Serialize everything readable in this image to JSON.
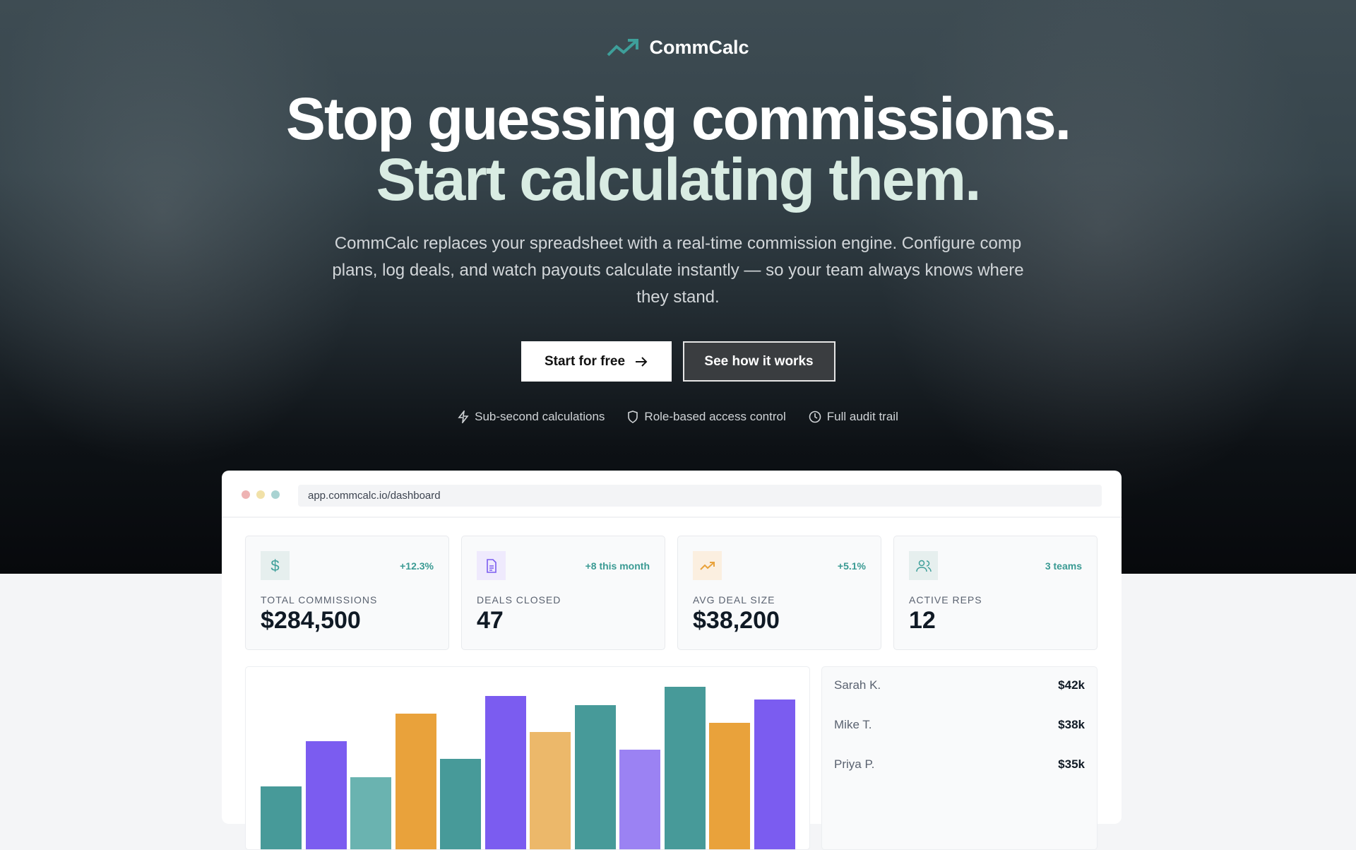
{
  "brand": {
    "name": "CommCalc",
    "accent": "#3e9f9a"
  },
  "hero": {
    "headline_1": "Stop guessing commissions.",
    "headline_2": "Start calculating them.",
    "subtitle": "CommCalc replaces your spreadsheet with a real-time commission engine. Configure comp plans, log deals, and watch payouts calculate instantly — so your team always knows where they stand.",
    "primary_button": "Start for free",
    "secondary_button": "See how it works",
    "features": [
      {
        "icon": "lightning-icon",
        "label": "Sub-second calculations"
      },
      {
        "icon": "shield-icon",
        "label": "Role-based access control"
      },
      {
        "icon": "clock-icon",
        "label": "Full audit trail"
      }
    ]
  },
  "dashboard": {
    "url": "app.commcalc.io/dashboard",
    "stats": [
      {
        "icon": "dollar-icon",
        "badge": "+12.3%",
        "label": "TOTAL COMMISSIONS",
        "value": "$284,500"
      },
      {
        "icon": "document-icon",
        "badge": "+8 this month",
        "label": "DEALS CLOSED",
        "value": "47"
      },
      {
        "icon": "trending-up-icon",
        "badge": "+5.1%",
        "label": "AVG DEAL SIZE",
        "value": "$38,200"
      },
      {
        "icon": "users-icon",
        "badge": "3 teams",
        "label": "ACTIVE REPS",
        "value": "12"
      }
    ],
    "leaderboard": [
      {
        "name": "Sarah K.",
        "amount": "$42k"
      },
      {
        "name": "Mike T.",
        "amount": "$38k"
      },
      {
        "name": "Priya P.",
        "amount": "$35k"
      }
    ]
  },
  "chart_data": {
    "type": "bar",
    "values": [
      35,
      60,
      40,
      75,
      50,
      85,
      65,
      80,
      55,
      90,
      70,
      83
    ],
    "colors": [
      "#479a99",
      "#7b5cf0",
      "#6ab3b0",
      "#e9a23b",
      "#479a99",
      "#7b5cf0",
      "#ecb86a",
      "#479a99",
      "#9b82f3",
      "#479a99",
      "#e9a23b",
      "#7b5cf0"
    ]
  }
}
